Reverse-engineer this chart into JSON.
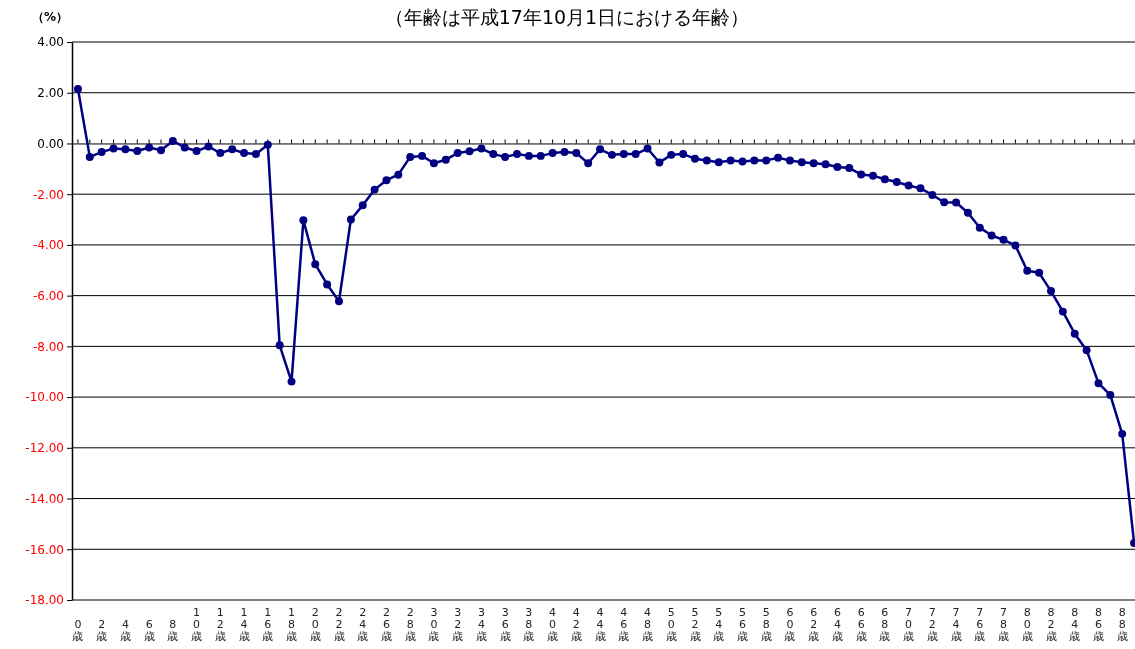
{
  "chart_data": {
    "type": "line",
    "title": "（年齢は平成17年10月1日における年齢）",
    "ylabel": "（%）",
    "categories": [
      "0歳",
      null,
      "2歳",
      null,
      "4歳",
      null,
      "6歳",
      null,
      "8歳",
      null,
      "10歳",
      null,
      "12歳",
      null,
      "14歳",
      null,
      "16歳",
      null,
      "18歳",
      null,
      "20歳",
      null,
      "22歳",
      null,
      "24歳",
      null,
      "26歳",
      null,
      "28歳",
      null,
      "30歳",
      null,
      "32歳",
      null,
      "34歳",
      null,
      "36歳",
      null,
      "38歳",
      null,
      "40歳",
      null,
      "42歳",
      null,
      "44歳",
      null,
      "46歳",
      null,
      "48歳",
      null,
      "50歳",
      null,
      "52歳",
      null,
      "54歳",
      null,
      "56歳",
      null,
      "58歳",
      null,
      "60歳",
      null,
      "62歳",
      null,
      "64歳",
      null,
      "66歳",
      null,
      "68歳",
      null,
      "70歳",
      null,
      "72歳",
      null,
      "74歳",
      null,
      "76歳",
      null,
      "78歳",
      null,
      "80歳",
      null,
      "82歳",
      null,
      "84歳",
      null,
      "86歳",
      null,
      "88歳",
      null
    ],
    "series": [
      {
        "color": "#000080",
        "values": [
          2.15,
          -0.53,
          -0.34,
          -0.2,
          -0.23,
          -0.3,
          -0.16,
          -0.27,
          0.1,
          -0.16,
          -0.3,
          -0.12,
          -0.38,
          -0.23,
          -0.38,
          -0.42,
          -0.05,
          -7.96,
          -9.39,
          -3.03,
          -4.76,
          -5.56,
          -6.22,
          -3.0,
          -2.44,
          -1.82,
          -1.45,
          -1.23,
          -0.53,
          -0.49,
          -0.78,
          -0.64,
          -0.38,
          -0.31,
          -0.2,
          -0.42,
          -0.53,
          -0.42,
          -0.49,
          -0.49,
          -0.38,
          -0.34,
          -0.38,
          -0.78,
          -0.23,
          -0.45,
          -0.42,
          -0.42,
          -0.2,
          -0.75,
          -0.45,
          -0.42,
          -0.6,
          -0.67,
          -0.74,
          -0.67,
          -0.71,
          -0.67,
          -0.67,
          -0.56,
          -0.67,
          -0.74,
          -0.78,
          -0.82,
          -0.93,
          -0.97,
          -1.22,
          -1.27,
          -1.41,
          -1.52,
          -1.66,
          -1.77,
          -2.03,
          -2.32,
          -2.33,
          -2.73,
          -3.32,
          -3.63,
          -3.8,
          -4.02,
          -5.02,
          -5.1,
          -5.82,
          -6.63,
          -7.5,
          -8.15,
          -9.45,
          -9.92,
          -11.45,
          -15.75
        ]
      }
    ],
    "ylim": [
      -18,
      4
    ],
    "yticks": [
      {
        "value": 4,
        "label": "4.00"
      },
      {
        "value": 2,
        "label": "2.00"
      },
      {
        "value": 0,
        "label": "0.00"
      },
      {
        "value": -2,
        "label": "-2.00"
      },
      {
        "value": -4,
        "label": "-4.00"
      },
      {
        "value": -6,
        "label": "-6.00"
      },
      {
        "value": -8,
        "label": "-8.00"
      },
      {
        "value": -10,
        "label": "-10.00"
      },
      {
        "value": -12,
        "label": "-12.00"
      },
      {
        "value": -14,
        "label": "-14.00"
      },
      {
        "value": -16,
        "label": "-16.00"
      },
      {
        "value": -18,
        "label": "-18.00"
      }
    ],
    "grid": "y",
    "marker": "circle",
    "line_style": "solid"
  }
}
